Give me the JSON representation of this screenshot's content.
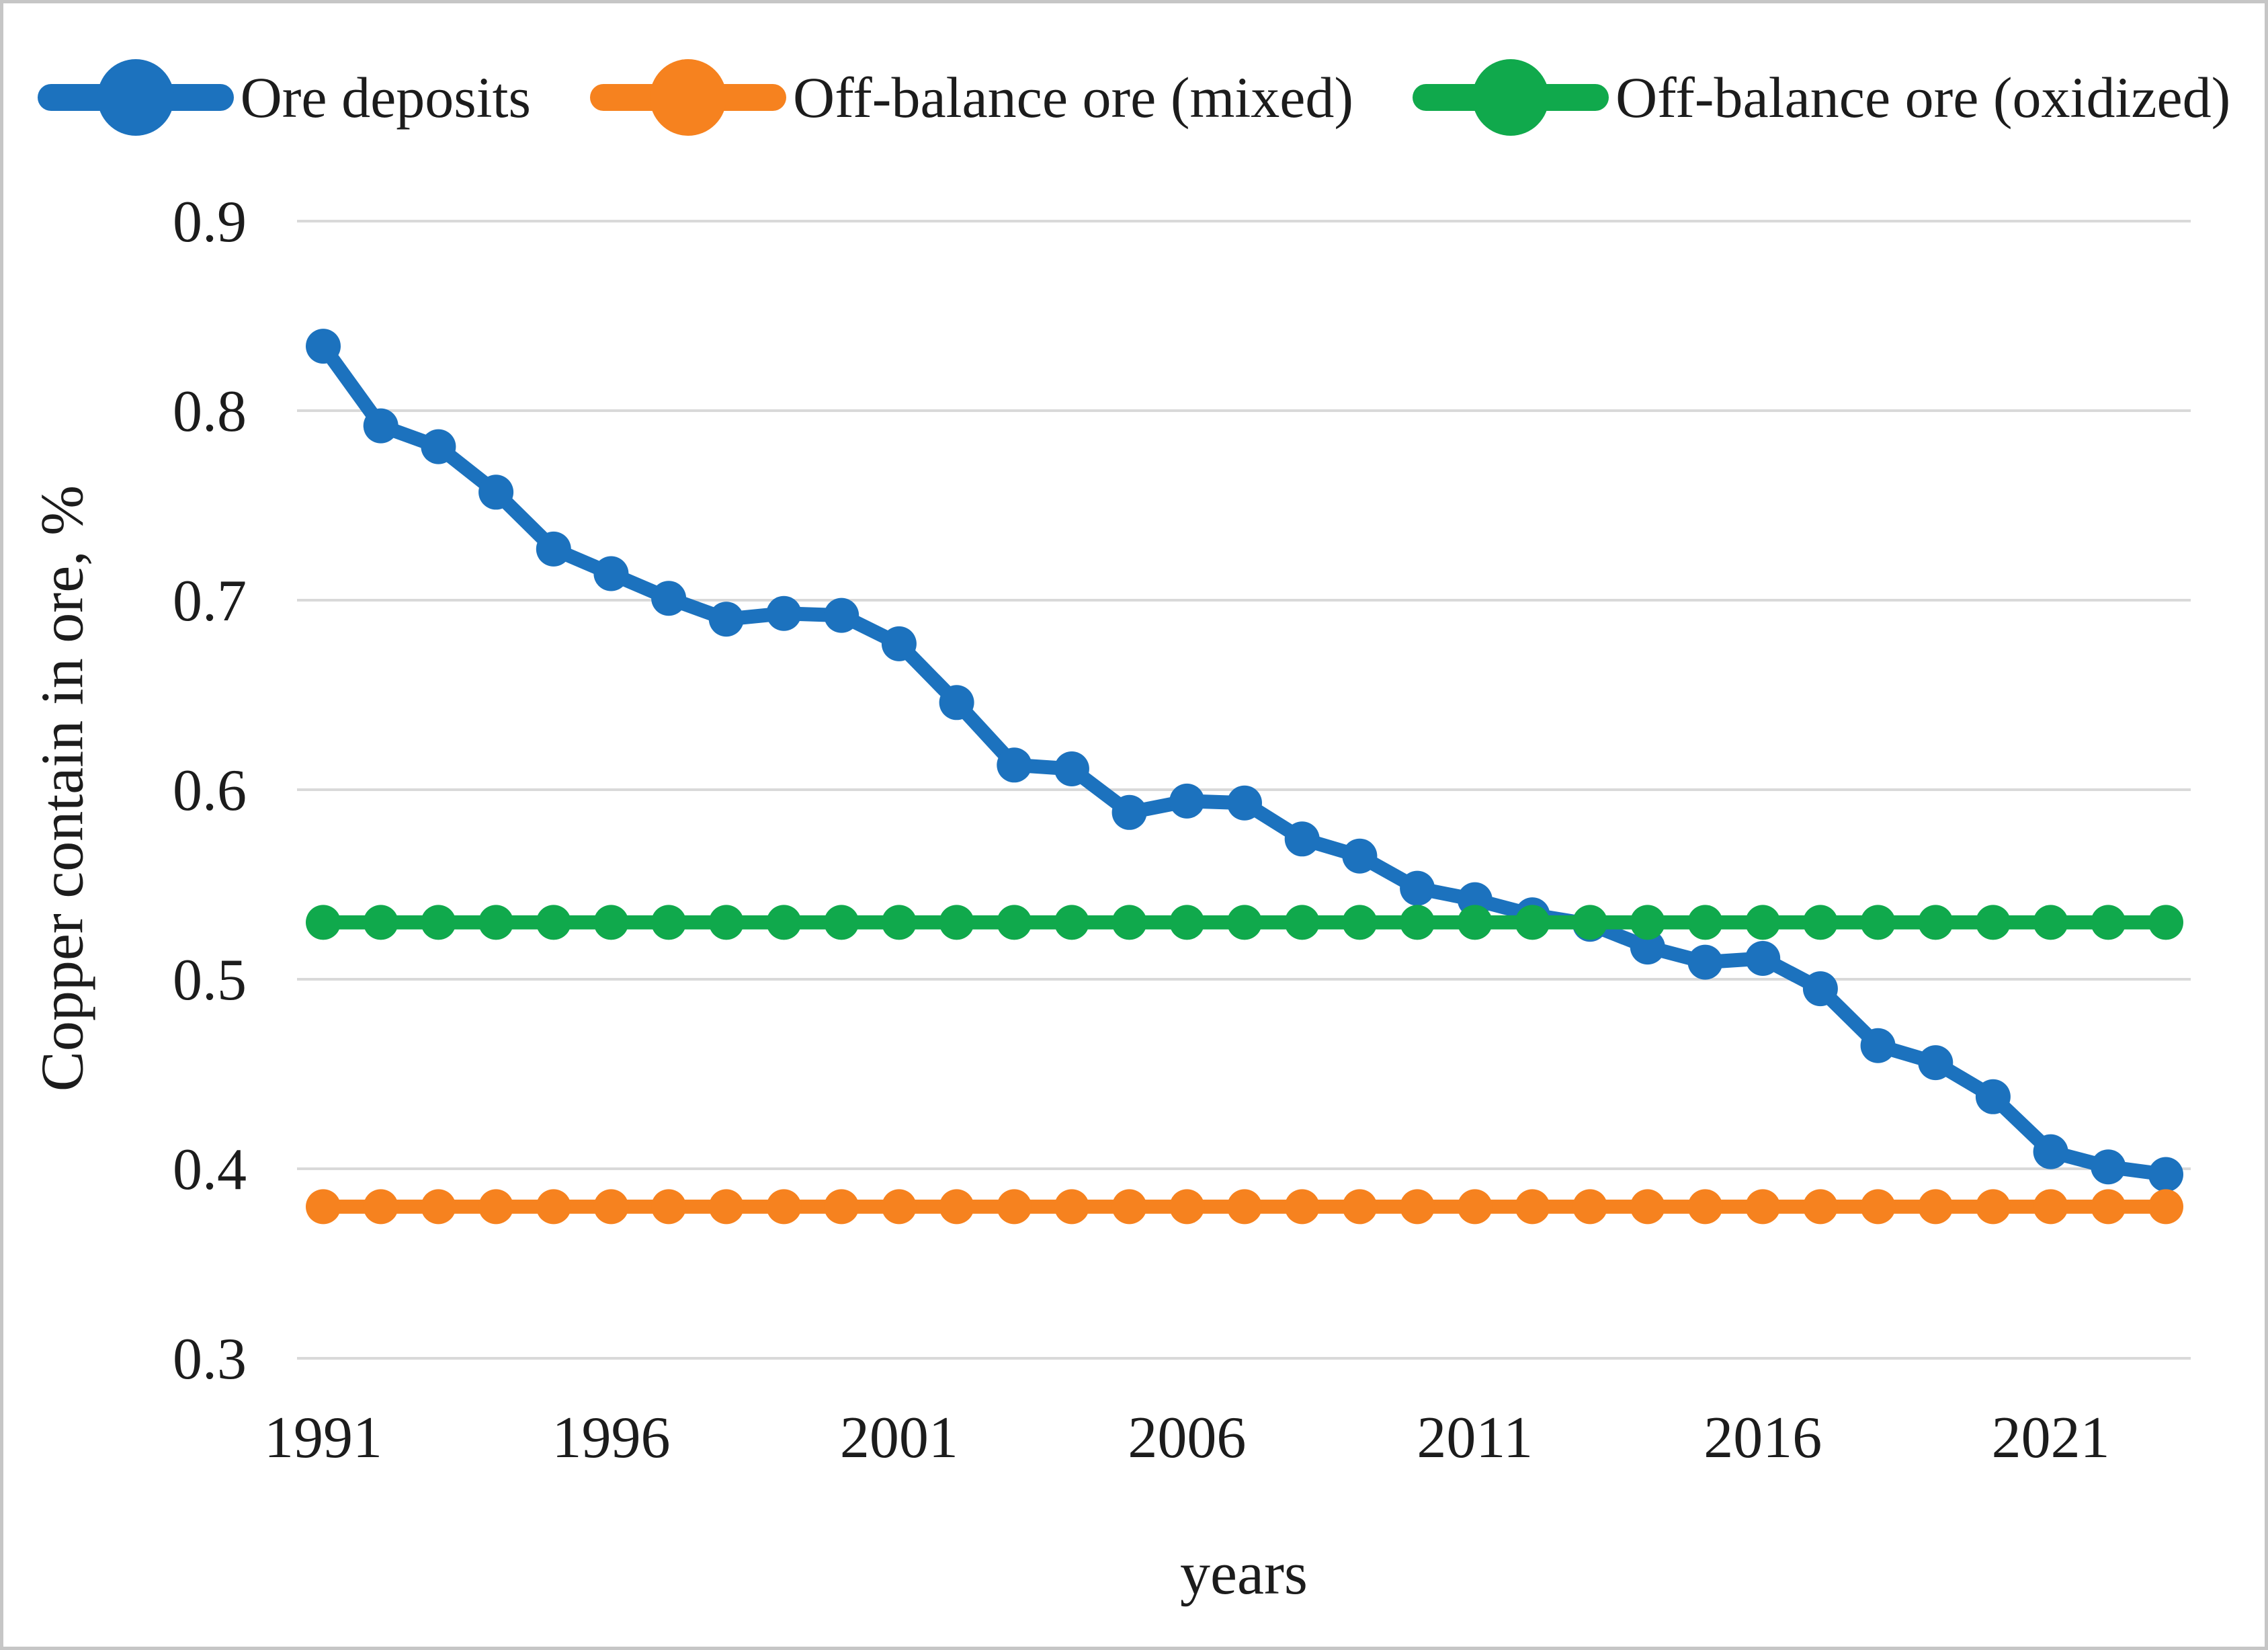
{
  "figure": {
    "y_axis_title": "Copper contain in ore, %",
    "x_axis_title": "years"
  },
  "legend": {
    "items": [
      {
        "label": "Ore deposits",
        "color": "#1c72be"
      },
      {
        "label": "Off-balance ore (mixed)",
        "color": "#f6821f"
      },
      {
        "label": "Off-balance ore (oxidized)",
        "color": "#10a94c"
      }
    ]
  },
  "colors": {
    "grid": "#d9d9d9",
    "text": "#1c1c1c",
    "border": "#c6c6c6",
    "background": "#ffffff"
  },
  "chart_data": {
    "type": "line",
    "title": "",
    "xlabel": "years",
    "ylabel": "Copper contain in ore, %",
    "x": [
      1991,
      1992,
      1993,
      1994,
      1995,
      1996,
      1997,
      1998,
      1999,
      2000,
      2001,
      2002,
      2003,
      2004,
      2005,
      2006,
      2007,
      2008,
      2009,
      2010,
      2011,
      2012,
      2013,
      2014,
      2015,
      2016,
      2017,
      2018,
      2019,
      2020,
      2021,
      2022,
      2023
    ],
    "series": [
      {
        "name": "Ore deposits",
        "color": "#1c72be",
        "values": [
          0.834,
          0.792,
          0.781,
          0.757,
          0.727,
          0.714,
          0.701,
          0.69,
          0.693,
          0.692,
          0.677,
          0.646,
          0.613,
          0.611,
          0.588,
          0.594,
          0.593,
          0.574,
          0.565,
          0.548,
          0.542,
          0.534,
          0.529,
          0.517,
          0.509,
          0.511,
          0.495,
          0.465,
          0.456,
          0.438,
          0.409,
          0.401,
          0.397
        ]
      },
      {
        "name": "Off-balance ore (mixed)",
        "color": "#f6821f",
        "values": [
          0.38,
          0.38,
          0.38,
          0.38,
          0.38,
          0.38,
          0.38,
          0.38,
          0.38,
          0.38,
          0.38,
          0.38,
          0.38,
          0.38,
          0.38,
          0.38,
          0.38,
          0.38,
          0.38,
          0.38,
          0.38,
          0.38,
          0.38,
          0.38,
          0.38,
          0.38,
          0.38,
          0.38,
          0.38,
          0.38,
          0.38,
          0.38,
          0.38
        ]
      },
      {
        "name": "Off-balance ore (oxidized)",
        "color": "#10a94c",
        "values": [
          0.53,
          0.53,
          0.53,
          0.53,
          0.53,
          0.53,
          0.53,
          0.53,
          0.53,
          0.53,
          0.53,
          0.53,
          0.53,
          0.53,
          0.53,
          0.53,
          0.53,
          0.53,
          0.53,
          0.53,
          0.53,
          0.53,
          0.53,
          0.53,
          0.53,
          0.53,
          0.53,
          0.53,
          0.53,
          0.53,
          0.53,
          0.53,
          0.53
        ]
      }
    ],
    "ylim": [
      0.3,
      0.9
    ],
    "yticks": [
      0.9,
      0.8,
      0.7,
      0.6,
      0.5,
      0.4,
      0.3
    ],
    "xticks": [
      1991,
      1996,
      2001,
      2006,
      2011,
      2016,
      2021
    ],
    "grid": "horizontal",
    "legend_position": "top"
  }
}
